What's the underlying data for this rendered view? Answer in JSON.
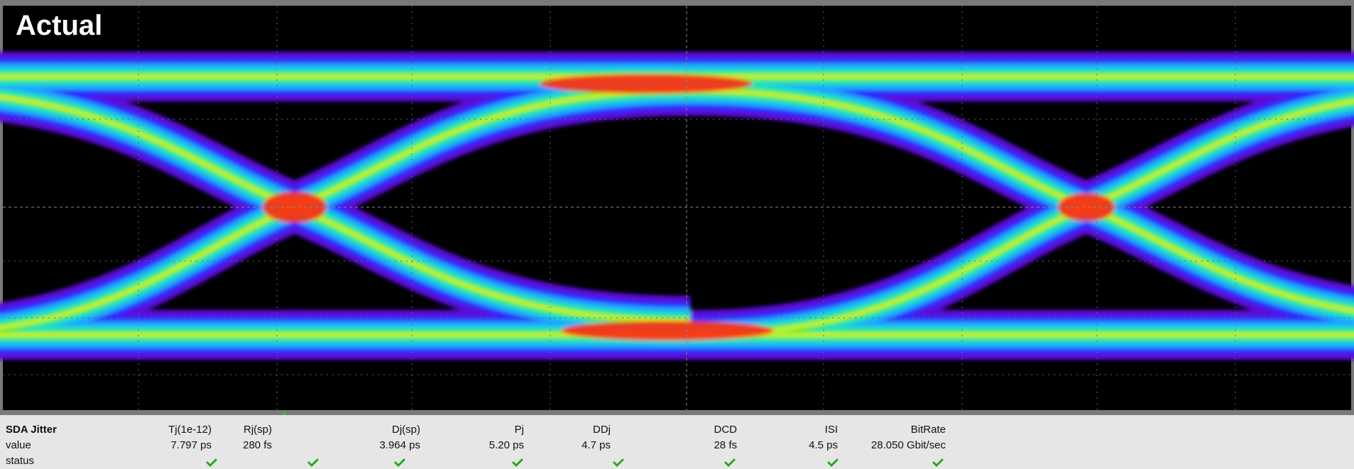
{
  "screen": {
    "title": "Actual"
  },
  "table": {
    "header": [
      "SDA Jitter",
      "Tj(1e-12)",
      "Rj(sp)",
      "Dj(sp)",
      "Pj",
      "DDj",
      "DCD",
      "ISI",
      "BitRate"
    ],
    "rows": [
      [
        "value",
        "7.797 ps",
        "280 fs",
        "3.964 ps",
        "5.20 ps",
        "4.7 ps",
        "28 fs",
        "4.5 ps",
        "28.050 Gbit/sec"
      ],
      [
        "status"
      ]
    ]
  }
}
